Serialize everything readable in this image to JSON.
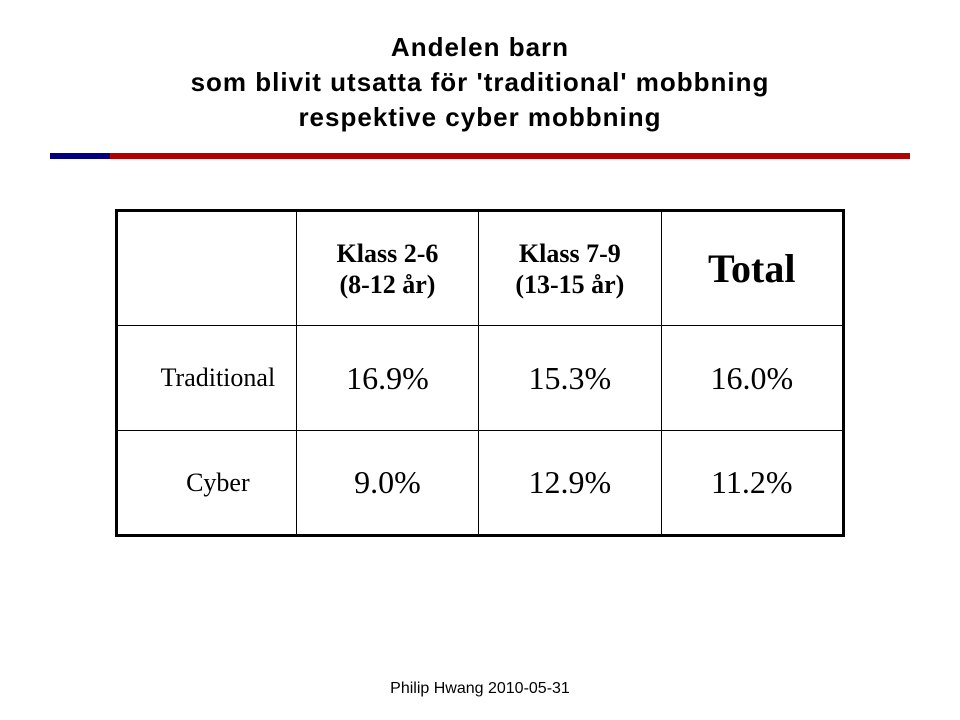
{
  "title": {
    "line1": "Andelen barn",
    "line2": "som blivit utsatta för 'traditional' mobbning",
    "line3": "respektive cyber mobbning"
  },
  "table": {
    "columns": [
      {
        "line1": "Klass 2-6",
        "line2": "(8-12 år)"
      },
      {
        "line1": "Klass 7-9",
        "line2": "(13-15 år)"
      }
    ],
    "total_label": "Total",
    "rows": [
      {
        "label": "Traditional",
        "c1": "16.9%",
        "c2": "15.3%",
        "total": "16.0%"
      },
      {
        "label": "Cyber",
        "c1": "9.0%",
        "c2": "12.9%",
        "total": "11.2%"
      }
    ]
  },
  "footer": "Philip Hwang 2010-05-31",
  "colors": {
    "rule_main": "#b30000",
    "rule_left": "#000080",
    "text": "#000000",
    "background": "#ffffff",
    "border": "#000000"
  }
}
